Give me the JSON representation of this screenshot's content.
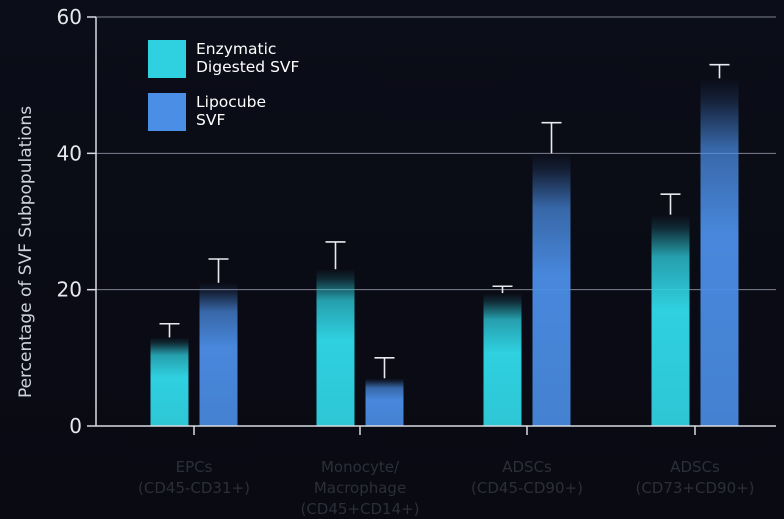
{
  "chart_data": {
    "type": "bar",
    "title": "",
    "ylabel": "Percentage of SVF Subpopulations",
    "xlabel": "",
    "ylim": [
      0,
      60
    ],
    "yticks": [
      0,
      20,
      40,
      60
    ],
    "grid": true,
    "legend_position": "top-left",
    "categories": [
      [
        "EPCs",
        "(CD45-CD31+)"
      ],
      [
        "Monocyte/",
        "Macrophage",
        "(CD45+CD14+)"
      ],
      [
        "ADSCs",
        "(CD45-CD90+)"
      ],
      [
        "ADSCs",
        "(CD73+CD90+)"
      ]
    ],
    "series": [
      {
        "name": [
          "Enzymatic",
          "Digested SVF"
        ],
        "color": "#2fd0e0",
        "values": [
          13,
          23,
          19.5,
          31
        ],
        "errors": [
          2,
          4,
          1,
          3
        ]
      },
      {
        "name": [
          "Lipocube",
          "SVF"
        ],
        "color": "#4b8ee6",
        "values": [
          21,
          7,
          40,
          51
        ],
        "errors": [
          3.5,
          3,
          4.5,
          2
        ]
      }
    ]
  }
}
